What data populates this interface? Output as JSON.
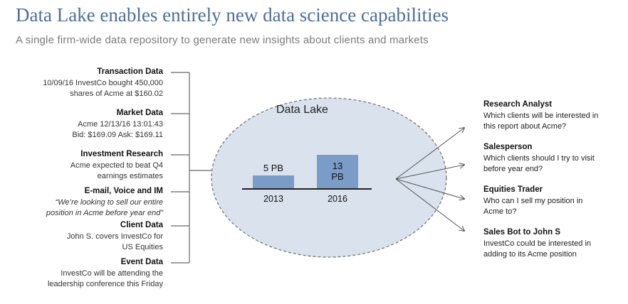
{
  "header": {
    "title": "Data Lake enables entirely new data science capabilities",
    "subtitle": "A single firm-wide data repository to generate new insights about clients and markets"
  },
  "sources": [
    {
      "title": "Transaction Data",
      "lines": [
        "10/09/16 InvestCo bought 450,000",
        "shares of Acme at $160.02"
      ]
    },
    {
      "title": "Market Data",
      "lines": [
        "Acme 12/13/16 13:01:43",
        "Bid: $169.09 Ask: $169.11"
      ]
    },
    {
      "title": "Investment Research",
      "lines": [
        "Acme expected to beat Q4",
        "earnings estimates"
      ]
    },
    {
      "title": "E-mail, Voice and IM",
      "lines": [
        "“We’re looking to sell our entire",
        "position in Acme before year end”"
      ],
      "italic": true
    },
    {
      "title": "Client Data",
      "lines": [
        "John S. covers InvestCo for",
        "US Equities"
      ]
    },
    {
      "title": "Event Data",
      "lines": [
        "InvestCo will be attending the",
        "leadership conference this Friday"
      ]
    }
  ],
  "chart_data": {
    "type": "bar",
    "title": "Data Lake",
    "categories": [
      "2013",
      "2016"
    ],
    "values": [
      5,
      13
    ],
    "value_labels": [
      "5 PB",
      "13 PB"
    ],
    "color": "#7b9cc6"
  },
  "outputs": [
    {
      "title": "Research Analyst",
      "lines": [
        "Which clients will be interested in",
        "this report about Acme?"
      ]
    },
    {
      "title": "Salesperson",
      "lines": [
        "Which clients should I try to visit",
        "before year end?"
      ]
    },
    {
      "title": "Equities Trader",
      "lines": [
        "Who can I sell my position in",
        "Acme to?"
      ]
    },
    {
      "title": "Sales Bot to John S",
      "lines": [
        "InvestCo could be interested in",
        "adding to its Acme position"
      ]
    }
  ]
}
